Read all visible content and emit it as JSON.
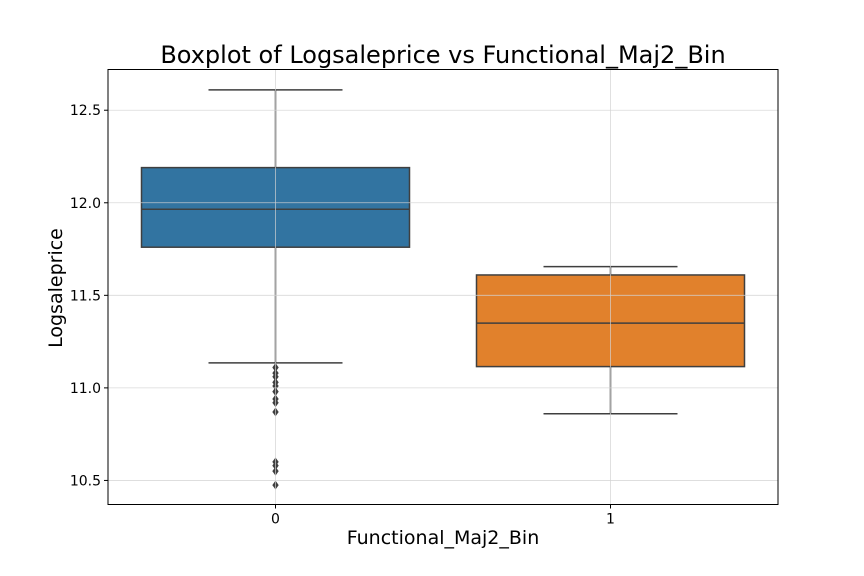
{
  "chart_data": {
    "type": "box",
    "title": "Boxplot of Logsaleprice vs Functional_Maj2_Bin",
    "xlabel": "Functional_Maj2_Bin",
    "ylabel": "Logsaleprice",
    "ylim": [
      10.37,
      12.72
    ],
    "yticks": [
      10.5,
      11.0,
      11.5,
      12.0,
      12.5
    ],
    "ytick_labels": [
      "10.5",
      "11.0",
      "11.5",
      "12.0",
      "12.5"
    ],
    "grid": true,
    "categories": [
      "0",
      "1"
    ],
    "boxes": [
      {
        "category": "0",
        "color": "#3274a1",
        "whisker_low": 11.135,
        "q1": 11.76,
        "median": 11.965,
        "q3": 12.19,
        "whisker_high": 12.61,
        "outliers": [
          11.11,
          11.08,
          11.06,
          11.03,
          11.01,
          10.98,
          10.94,
          10.92,
          10.87,
          10.6,
          10.58,
          10.55,
          10.475
        ]
      },
      {
        "category": "1",
        "color": "#e1812c",
        "whisker_low": 10.86,
        "q1": 11.115,
        "median": 11.35,
        "q3": 11.61,
        "whisker_high": 11.655,
        "outliers": []
      }
    ]
  }
}
